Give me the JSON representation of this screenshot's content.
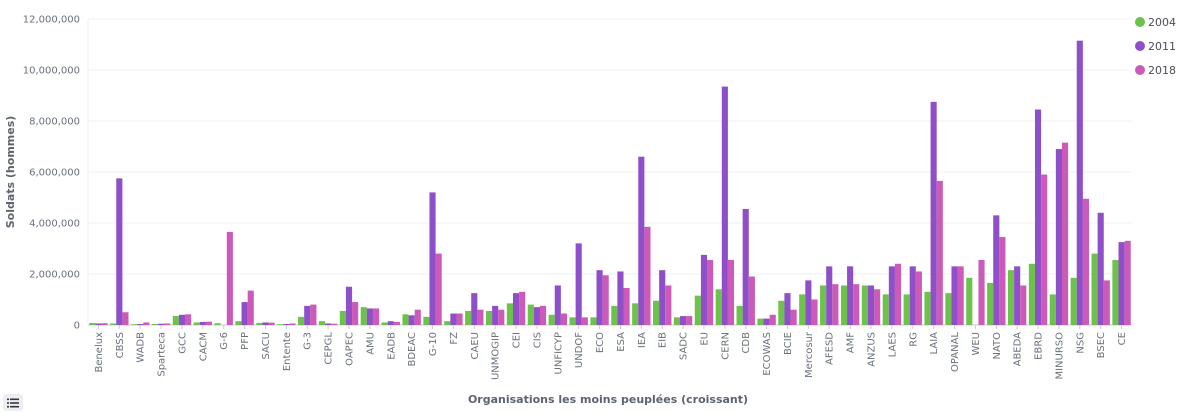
{
  "chart_data": {
    "type": "bar",
    "ylabel": "Soldats (hommes)",
    "xlabel": "Organisations les moins peuplées (croissant)",
    "ylim": [
      0,
      12000000
    ],
    "yticks": [
      0,
      2000000,
      4000000,
      6000000,
      8000000,
      10000000,
      12000000
    ],
    "ytick_labels": [
      "0",
      "2,000,000",
      "4,000,000",
      "6,000,000",
      "8,000,000",
      "10,000,000",
      "12,000,000"
    ],
    "legend_position": "top-right",
    "grid": "horizontal",
    "categories": [
      "Benelux",
      "CBSS",
      "WADB",
      "Sparteca",
      "GCC",
      "CACM",
      "G-6",
      "PFP",
      "SACU",
      "Entente",
      "G-3",
      "CEPGL",
      "OAPEC",
      "AMU",
      "EADB",
      "BDEAC",
      "G-10",
      "FZ",
      "CAEU",
      "UNMOGIP",
      "CEI",
      "CIS",
      "UNFICYP",
      "UNDOF",
      "ECO",
      "ESA",
      "IEA",
      "EIB",
      "SADC",
      "EU",
      "CERN",
      "CDB",
      "ECOWAS",
      "BCIE",
      "Mercosur",
      "AFESD",
      "AMF",
      "ANZUS",
      "LAES",
      "RG",
      "LAIA",
      "OPANAL",
      "WEU",
      "NATO",
      "ABEDA",
      "EBRD",
      "MINURSO",
      "NSG",
      "BSEC",
      "CE"
    ],
    "series": [
      {
        "name": "2004",
        "color": "#6cc24a",
        "values": [
          80000,
          60000,
          30000,
          40000,
          350000,
          100000,
          70000,
          150000,
          80000,
          30000,
          320000,
          150000,
          550000,
          700000,
          100000,
          420000,
          320000,
          150000,
          550000,
          550000,
          850000,
          800000,
          400000,
          300000,
          300000,
          750000,
          850000,
          950000,
          300000,
          1150000,
          1400000,
          750000,
          250000,
          950000,
          1200000,
          1550000,
          1550000,
          1550000,
          1200000,
          1200000,
          1300000,
          1250000,
          1850000,
          1650000,
          2150000,
          2400000,
          1200000,
          1850000,
          2800000,
          2550000
        ]
      },
      {
        "name": "2011",
        "color": "#8e4fc9",
        "values": [
          60000,
          5750000,
          40000,
          50000,
          400000,
          120000,
          0,
          900000,
          100000,
          40000,
          750000,
          60000,
          1500000,
          650000,
          150000,
          380000,
          5200000,
          450000,
          1250000,
          750000,
          1250000,
          700000,
          1550000,
          3200000,
          2150000,
          2100000,
          6600000,
          2150000,
          350000,
          2750000,
          9350000,
          4550000,
          250000,
          1250000,
          1750000,
          2300000,
          2300000,
          1550000,
          2300000,
          2300000,
          8750000,
          2300000,
          0,
          4300000,
          2300000,
          8450000,
          6900000,
          11150000,
          4400000,
          3250000
        ]
      },
      {
        "name": "2018",
        "color": "#cc5ab8",
        "values": [
          70000,
          500000,
          100000,
          60000,
          420000,
          130000,
          3650000,
          1350000,
          90000,
          60000,
          800000,
          50000,
          900000,
          650000,
          120000,
          600000,
          2800000,
          450000,
          600000,
          600000,
          1300000,
          750000,
          450000,
          300000,
          1950000,
          1450000,
          3850000,
          1550000,
          350000,
          2550000,
          2550000,
          1900000,
          400000,
          600000,
          1000000,
          1600000,
          1600000,
          1400000,
          2400000,
          2100000,
          5650000,
          2300000,
          2550000,
          3450000,
          1550000,
          5900000,
          7150000,
          4950000,
          1750000,
          3300000
        ]
      }
    ]
  },
  "legend_toggle": {
    "icon": "list-icon"
  }
}
